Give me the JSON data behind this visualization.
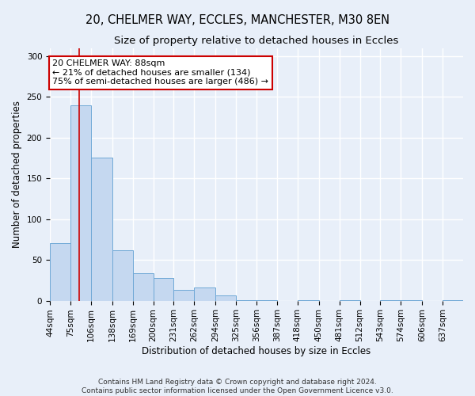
{
  "title_line1": "20, CHELMER WAY, ECCLES, MANCHESTER, M30 8EN",
  "title_line2": "Size of property relative to detached houses in Eccles",
  "xlabel": "Distribution of detached houses by size in Eccles",
  "ylabel": "Number of detached properties",
  "bar_edges": [
    44,
    75,
    106,
    138,
    169,
    200,
    231,
    262,
    294,
    325,
    356,
    387,
    418,
    450,
    481,
    512,
    543,
    574,
    606,
    637,
    668
  ],
  "bar_heights": [
    71,
    240,
    175,
    62,
    34,
    28,
    13,
    16,
    6,
    1,
    1,
    0,
    1,
    0,
    1,
    0,
    1,
    1,
    0,
    1
  ],
  "bar_color": "#c5d8f0",
  "bar_edge_color": "#6fa8d6",
  "property_line_x": 88,
  "property_line_color": "#cc0000",
  "annotation_text": "20 CHELMER WAY: 88sqm\n← 21% of detached houses are smaller (134)\n75% of semi-detached houses are larger (486) →",
  "annotation_box_color": "#ffffff",
  "annotation_border_color": "#cc0000",
  "ylim": [
    0,
    310
  ],
  "yticks": [
    0,
    50,
    100,
    150,
    200,
    250,
    300
  ],
  "footer_line1": "Contains HM Land Registry data © Crown copyright and database right 2024.",
  "footer_line2": "Contains public sector information licensed under the Open Government Licence v3.0.",
  "bg_color": "#e8eff9",
  "plot_bg_color": "#e8eff9",
  "grid_color": "#ffffff",
  "title_fontsize": 10.5,
  "subtitle_fontsize": 9.5,
  "axis_label_fontsize": 8.5,
  "tick_fontsize": 7.5,
  "footer_fontsize": 6.5,
  "annot_fontsize": 8
}
